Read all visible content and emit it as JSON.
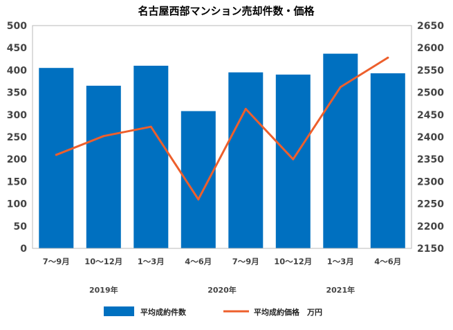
{
  "chart_data": {
    "type": "bar",
    "title": "名古屋西部マンション売却件数・価格",
    "categories": [
      "7～9月",
      "10～12月",
      "1～3月",
      "4～6月",
      "7～9月",
      "10～12月",
      "1～3月",
      "4～6月"
    ],
    "year_labels": [
      {
        "label": "2019年",
        "category_index": 1
      },
      {
        "label": "2020年",
        "category_index": 3.5
      },
      {
        "label": "2021年",
        "category_index": 6
      }
    ],
    "series": [
      {
        "name": "平均成約件数",
        "type": "bar",
        "axis": "left",
        "color": "#0070C0",
        "values": [
          405,
          365,
          410,
          308,
          395,
          390,
          437,
          393
        ]
      },
      {
        "name": "平均成約価格　万円",
        "type": "line",
        "axis": "right",
        "color": "#ED5F2C",
        "values": [
          2360,
          2402,
          2423,
          2260,
          2463,
          2350,
          2512,
          2578
        ]
      }
    ],
    "y_left": {
      "ticks": [
        0,
        50,
        100,
        150,
        200,
        250,
        300,
        350,
        400,
        450,
        500
      ],
      "ylim": [
        0,
        500
      ]
    },
    "y_right": {
      "ticks": [
        2150,
        2200,
        2250,
        2300,
        2350,
        2400,
        2450,
        2500,
        2550,
        2600,
        2650
      ],
      "anchors": [
        [
          2150,
          0
        ],
        [
          2200,
          50
        ],
        [
          2650,
          500
        ]
      ]
    },
    "grid": false,
    "legend_position": "bottom"
  }
}
